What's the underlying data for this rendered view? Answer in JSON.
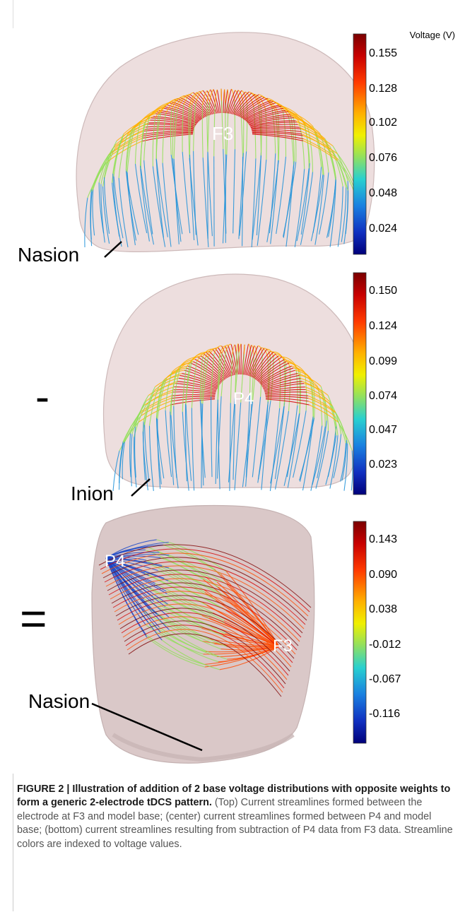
{
  "figure": {
    "panels": [
      {
        "id": "top",
        "electrode_label": "F3",
        "landmark_label": "Nasion",
        "operator": "",
        "colorbar": {
          "title": "Voltage (V)",
          "ticks": [
            "0.155",
            "0.128",
            "0.102",
            "0.076",
            "0.048",
            "0.024"
          ]
        }
      },
      {
        "id": "center",
        "electrode_label": "P4",
        "landmark_label": "Inion",
        "operator": "-",
        "colorbar": {
          "title": "",
          "ticks": [
            "0.150",
            "0.124",
            "0.099",
            "0.074",
            "0.047",
            "0.023"
          ]
        }
      },
      {
        "id": "bottom",
        "electrode_labels": [
          "P4",
          "F3"
        ],
        "landmark_label": "Nasion",
        "operator": "=",
        "colorbar": {
          "title": "",
          "ticks": [
            "0.143",
            "0.090",
            "0.038",
            "-0.012",
            "-0.067",
            "-0.116"
          ]
        }
      }
    ],
    "colormap": [
      "#7f0000",
      "#d40000",
      "#ff4a00",
      "#ffb000",
      "#f3f300",
      "#8fe055",
      "#2ed2c0",
      "#1a8fd8",
      "#1545c8",
      "#0a0a8c"
    ]
  },
  "caption": {
    "lead": "FIGURE 2 | Illustration of addition of 2 base voltage distributions with opposite weights to form a generic 2-electrode tDCS pattern.",
    "body": "(Top) Current streamlines formed between the electrode at F3 and model base; (center) current streamlines formed between P4 and model base; (bottom) current streamlines resulting from subtraction of P4 data from F3 data. Streamline colors are indexed to voltage values."
  }
}
